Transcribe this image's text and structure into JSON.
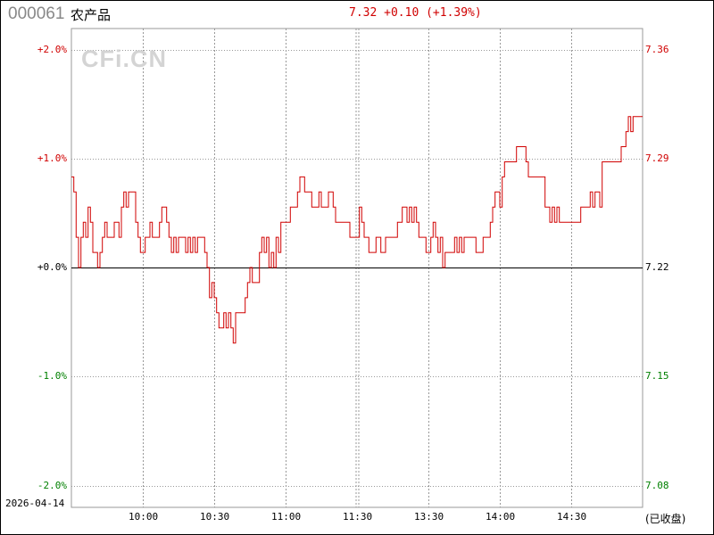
{
  "header": {
    "code": "000061",
    "name": "农产品",
    "quote": "7.32 +0.10 (+1.39%)"
  },
  "watermark": "CFi.CN",
  "footer": {
    "date": "2026-04-14",
    "status": "(已收盘)"
  },
  "colors": {
    "up": "#d00000",
    "down": "#008000",
    "line": "#d00000",
    "zero": "#000000",
    "grid": "#999999"
  },
  "chart_data": {
    "type": "line",
    "prev_close": 7.22,
    "ylim_pct": [
      -2.0,
      2.0
    ],
    "ylim_price": [
      7.08,
      7.36
    ],
    "grid": true,
    "left_ticks": [
      {
        "label": "+2.0%",
        "v": 2.0
      },
      {
        "label": "+1.0%",
        "v": 1.0
      },
      {
        "label": "+0.0%",
        "v": 0.0
      },
      {
        "label": "-1.0%",
        "v": -1.0
      },
      {
        "label": "-2.0%",
        "v": -2.0
      }
    ],
    "right_ticks": [
      {
        "label": "7.36",
        "v": 2.0
      },
      {
        "label": "7.29",
        "v": 1.0
      },
      {
        "label": "7.22",
        "v": 0.0
      },
      {
        "label": "7.15",
        "v": -1.0
      },
      {
        "label": "7.08",
        "v": -2.0
      }
    ],
    "x_ticks": [
      "10:00",
      "10:30",
      "11:00",
      "11:30",
      "13:30",
      "14:00",
      "14:30"
    ],
    "points": [
      [
        "09:30",
        7.28
      ],
      [
        "09:31",
        7.27
      ],
      [
        "09:32",
        7.24
      ],
      [
        "09:33",
        7.22
      ],
      [
        "09:34",
        7.24
      ],
      [
        "09:35",
        7.25
      ],
      [
        "09:36",
        7.24
      ],
      [
        "09:37",
        7.26
      ],
      [
        "09:38",
        7.25
      ],
      [
        "09:39",
        7.23
      ],
      [
        "09:41",
        7.22
      ],
      [
        "09:42",
        7.23
      ],
      [
        "09:43",
        7.24
      ],
      [
        "09:44",
        7.25
      ],
      [
        "09:45",
        7.24
      ],
      [
        "09:48",
        7.25
      ],
      [
        "09:50",
        7.24
      ],
      [
        "09:51",
        7.26
      ],
      [
        "09:52",
        7.27
      ],
      [
        "09:53",
        7.26
      ],
      [
        "09:54",
        7.27
      ],
      [
        "09:57",
        7.25
      ],
      [
        "09:58",
        7.24
      ],
      [
        "09:59",
        7.23
      ],
      [
        "10:01",
        7.24
      ],
      [
        "10:03",
        7.25
      ],
      [
        "10:04",
        7.24
      ],
      [
        "10:07",
        7.25
      ],
      [
        "10:08",
        7.26
      ],
      [
        "10:10",
        7.25
      ],
      [
        "10:11",
        7.24
      ],
      [
        "10:12",
        7.23
      ],
      [
        "10:13",
        7.24
      ],
      [
        "10:14",
        7.23
      ],
      [
        "10:15",
        7.24
      ],
      [
        "10:18",
        7.23
      ],
      [
        "10:19",
        7.24
      ],
      [
        "10:20",
        7.23
      ],
      [
        "10:21",
        7.24
      ],
      [
        "10:22",
        7.23
      ],
      [
        "10:23",
        7.24
      ],
      [
        "10:26",
        7.23
      ],
      [
        "10:27",
        7.22
      ],
      [
        "10:28",
        7.2
      ],
      [
        "10:29",
        7.21
      ],
      [
        "10:30",
        7.2
      ],
      [
        "10:31",
        7.19
      ],
      [
        "10:32",
        7.18
      ],
      [
        "10:34",
        7.19
      ],
      [
        "10:35",
        7.18
      ],
      [
        "10:36",
        7.19
      ],
      [
        "10:37",
        7.18
      ],
      [
        "10:38",
        7.17
      ],
      [
        "10:39",
        7.19
      ],
      [
        "10:43",
        7.2
      ],
      [
        "10:44",
        7.21
      ],
      [
        "10:45",
        7.22
      ],
      [
        "10:46",
        7.21
      ],
      [
        "10:49",
        7.23
      ],
      [
        "10:50",
        7.24
      ],
      [
        "10:51",
        7.23
      ],
      [
        "10:52",
        7.24
      ],
      [
        "10:53",
        7.22
      ],
      [
        "10:54",
        7.23
      ],
      [
        "10:55",
        7.22
      ],
      [
        "10:56",
        7.24
      ],
      [
        "10:57",
        7.23
      ],
      [
        "10:58",
        7.25
      ],
      [
        "11:02",
        7.26
      ],
      [
        "11:05",
        7.27
      ],
      [
        "11:06",
        7.28
      ],
      [
        "11:08",
        7.27
      ],
      [
        "11:11",
        7.26
      ],
      [
        "11:14",
        7.27
      ],
      [
        "11:15",
        7.26
      ],
      [
        "11:18",
        7.27
      ],
      [
        "11:20",
        7.26
      ],
      [
        "11:21",
        7.25
      ],
      [
        "11:27",
        7.24
      ],
      [
        "11:30",
        7.24
      ],
      [
        "13:01",
        7.26
      ],
      [
        "13:02",
        7.25
      ],
      [
        "13:03",
        7.24
      ],
      [
        "13:05",
        7.23
      ],
      [
        "13:08",
        7.24
      ],
      [
        "13:10",
        7.23
      ],
      [
        "13:12",
        7.24
      ],
      [
        "13:17",
        7.25
      ],
      [
        "13:19",
        7.26
      ],
      [
        "13:21",
        7.25
      ],
      [
        "13:22",
        7.26
      ],
      [
        "13:23",
        7.25
      ],
      [
        "13:24",
        7.26
      ],
      [
        "13:25",
        7.25
      ],
      [
        "13:26",
        7.24
      ],
      [
        "13:29",
        7.23
      ],
      [
        "13:31",
        7.24
      ],
      [
        "13:32",
        7.25
      ],
      [
        "13:33",
        7.24
      ],
      [
        "13:34",
        7.23
      ],
      [
        "13:35",
        7.24
      ],
      [
        "13:36",
        7.22
      ],
      [
        "13:37",
        7.23
      ],
      [
        "13:41",
        7.24
      ],
      [
        "13:42",
        7.23
      ],
      [
        "13:43",
        7.24
      ],
      [
        "13:44",
        7.23
      ],
      [
        "13:45",
        7.24
      ],
      [
        "13:50",
        7.23
      ],
      [
        "13:53",
        7.24
      ],
      [
        "13:56",
        7.25
      ],
      [
        "13:57",
        7.26
      ],
      [
        "13:58",
        7.27
      ],
      [
        "14:00",
        7.26
      ],
      [
        "14:01",
        7.28
      ],
      [
        "14:02",
        7.29
      ],
      [
        "14:07",
        7.3
      ],
      [
        "14:11",
        7.29
      ],
      [
        "14:12",
        7.28
      ],
      [
        "14:19",
        7.26
      ],
      [
        "14:21",
        7.25
      ],
      [
        "14:22",
        7.26
      ],
      [
        "14:23",
        7.25
      ],
      [
        "14:24",
        7.26
      ],
      [
        "14:25",
        7.25
      ],
      [
        "14:34",
        7.26
      ],
      [
        "14:38",
        7.27
      ],
      [
        "14:39",
        7.26
      ],
      [
        "14:40",
        7.27
      ],
      [
        "14:42",
        7.26
      ],
      [
        "14:43",
        7.29
      ],
      [
        "14:51",
        7.3
      ],
      [
        "14:53",
        7.31
      ],
      [
        "14:54",
        7.32
      ],
      [
        "14:55",
        7.31
      ],
      [
        "14:56",
        7.32
      ],
      [
        "15:00",
        7.32
      ]
    ]
  }
}
